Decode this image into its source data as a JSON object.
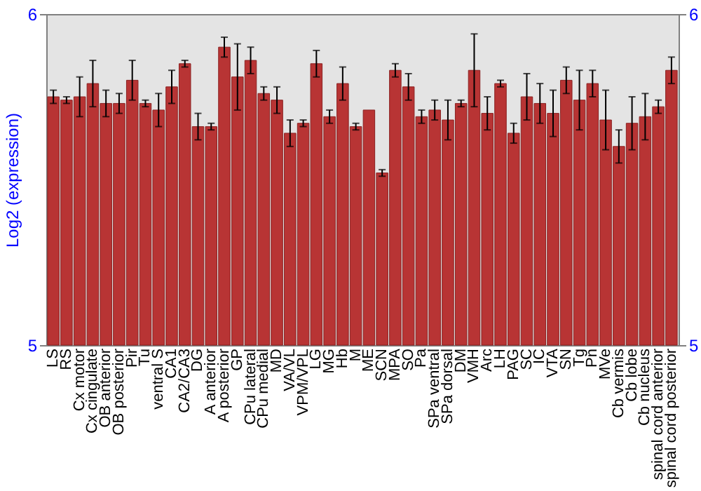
{
  "chart_data": {
    "type": "bar",
    "ylabel": "Log2 (expression)",
    "categories": [
      "LS",
      "RS",
      "Cx motor",
      "Cx cingulate",
      "OB anterior",
      "OB posterior",
      "Pir",
      "Tu",
      "ventral S",
      "CA1",
      "CA2/CA3",
      "DG",
      "A anterior",
      "A posterior",
      "GP",
      "CPu lateral",
      "CPu medial",
      "MD",
      "VA/VL",
      "VPM/VPL",
      "LG",
      "MG",
      "Hb",
      "M",
      "ME",
      "SCN",
      "MPA",
      "SO",
      "Pa",
      "SPa ventral",
      "SPa dorsal",
      "DM",
      "VMH",
      "Arc",
      "LH",
      "PAG",
      "SC",
      "IC",
      "VTA",
      "SN",
      "Tg",
      "Pn",
      "MVe",
      "Cb vermis",
      "Cb lobe",
      "Cb nucleus",
      "spinal cord anterior",
      "spinal cord posterior"
    ],
    "values": [
      5.75,
      5.74,
      5.75,
      5.79,
      5.73,
      5.73,
      5.8,
      5.73,
      5.71,
      5.78,
      5.85,
      5.66,
      5.66,
      5.9,
      5.81,
      5.86,
      5.76,
      5.74,
      5.64,
      5.67,
      5.85,
      5.69,
      5.79,
      5.66,
      5.71,
      5.52,
      5.83,
      5.78,
      5.69,
      5.71,
      5.68,
      5.73,
      5.83,
      5.7,
      5.79,
      5.64,
      5.75,
      5.73,
      5.7,
      5.8,
      5.74,
      5.79,
      5.68,
      5.6,
      5.67,
      5.69,
      5.72,
      5.83
    ],
    "errors": [
      0.02,
      0.01,
      0.06,
      0.07,
      0.04,
      0.03,
      0.06,
      0.01,
      0.05,
      0.05,
      0.01,
      0.04,
      0.01,
      0.03,
      0.1,
      0.04,
      0.02,
      0.04,
      0.04,
      0.01,
      0.04,
      0.02,
      0.05,
      0.01,
      null,
      0.01,
      0.02,
      0.04,
      0.02,
      0.03,
      0.06,
      0.01,
      0.11,
      0.05,
      0.01,
      0.03,
      0.07,
      0.06,
      0.07,
      0.04,
      0.09,
      0.04,
      0.09,
      0.05,
      0.08,
      0.07,
      0.02,
      0.04
    ],
    "color": "#b83434",
    "ylim": [
      5,
      6
    ],
    "yticks": [
      5,
      6
    ],
    "y2lim": [
      5,
      6
    ],
    "y2ticks": [
      5,
      6
    ],
    "grid": false
  }
}
